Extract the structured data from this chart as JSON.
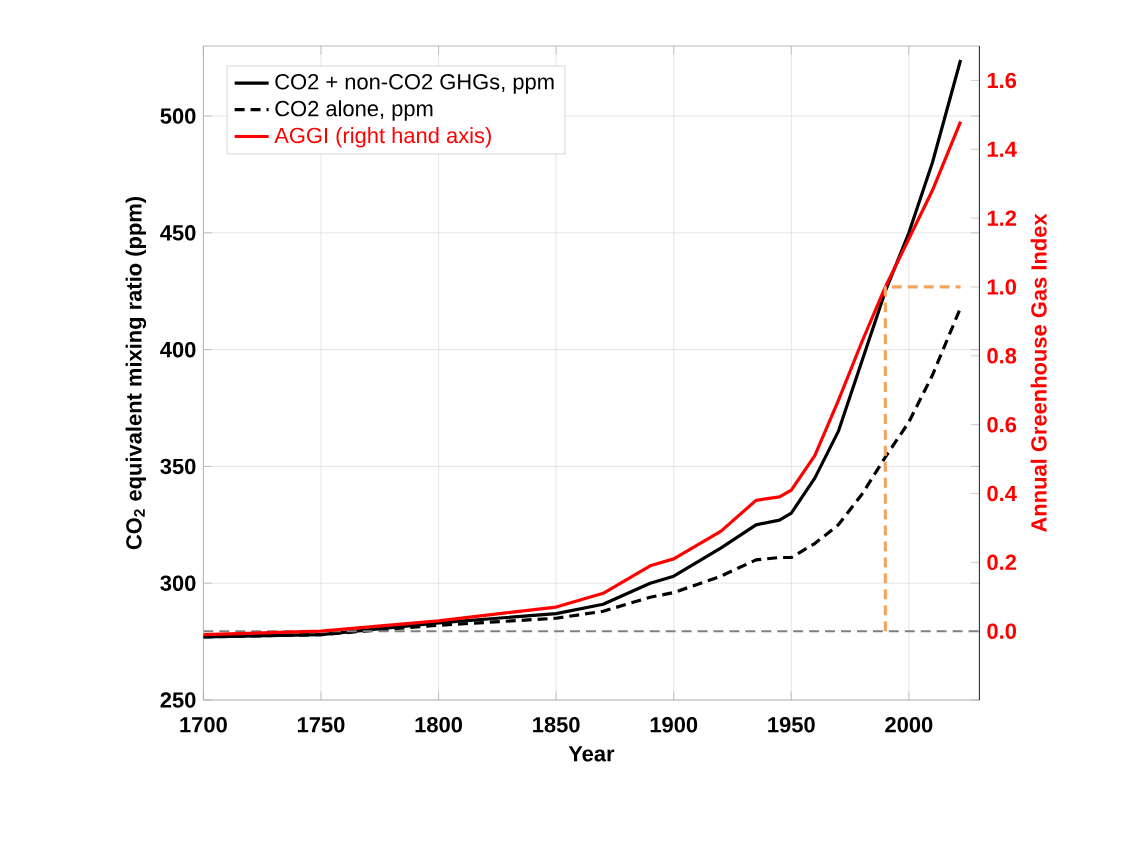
{
  "chart_data": {
    "type": "line",
    "xlabel": "Year",
    "ylabel": "CO$_{2}$ equivalent mixing ratio (ppm)",
    "y2label": "Annual Greenhouse Gas Index",
    "xlim": [
      1700,
      2030
    ],
    "xticks": [
      1700,
      1750,
      1800,
      1850,
      1900,
      1950,
      2000
    ],
    "ylim": [
      250,
      530
    ],
    "yticks": [
      250,
      300,
      350,
      400,
      450,
      500
    ],
    "y2lim": [
      -0.2,
      1.7
    ],
    "y2ticks": [
      {
        "value": 0,
        "label": "0.0"
      },
      0.2,
      0.4,
      0.6,
      0.8,
      {
        "value": 1,
        "label": "1.0"
      },
      1.2,
      1.4,
      1.6
    ],
    "grid": true,
    "legend": "top left",
    "marker": "none",
    "x": [
      1700,
      1750,
      1800,
      1850,
      1870,
      1890,
      1900,
      1920,
      1935,
      1945,
      1950,
      1960,
      1970,
      1980,
      1990,
      2000,
      2010,
      2022
    ],
    "series": [
      {
        "name": "CO2 + non-CO2 GHGs, ppm",
        "color": "#000000",
        "line_style": "solid",
        "values": [
          277,
          278,
          283,
          287,
          291,
          300,
          303,
          315,
          325,
          327,
          330,
          345,
          365,
          395,
          425,
          450,
          480,
          524
        ]
      },
      {
        "name": "CO2 alone, ppm",
        "color": "#000000",
        "line_style": "dashed",
        "values": [
          277,
          278,
          282,
          285,
          288,
          294,
          296,
          303,
          310,
          311,
          311,
          317,
          325,
          338,
          354,
          369,
          389,
          418
        ]
      },
      {
        "name": "AGGI (right hand axis)",
        "color": "#ff0000",
        "line_style": "solid",
        "axis": "y2",
        "values": [
          -0.01,
          0.0,
          0.03,
          0.07,
          0.11,
          0.19,
          0.21,
          0.29,
          0.38,
          0.39,
          0.41,
          0.51,
          0.67,
          0.84,
          1.0,
          1.14,
          1.28,
          1.48
        ]
      },
      {
        "type": "step",
        "color": "#f4a460",
        "line_style": "dashed",
        "axis": "y2",
        "x": [
          1990,
          2022
        ],
        "values": [
          0,
          1
        ]
      }
    ],
    "ref_lines": [
      {
        "axis": "y2",
        "value": 0,
        "color": "#808080",
        "line_style": "dashed"
      }
    ]
  }
}
